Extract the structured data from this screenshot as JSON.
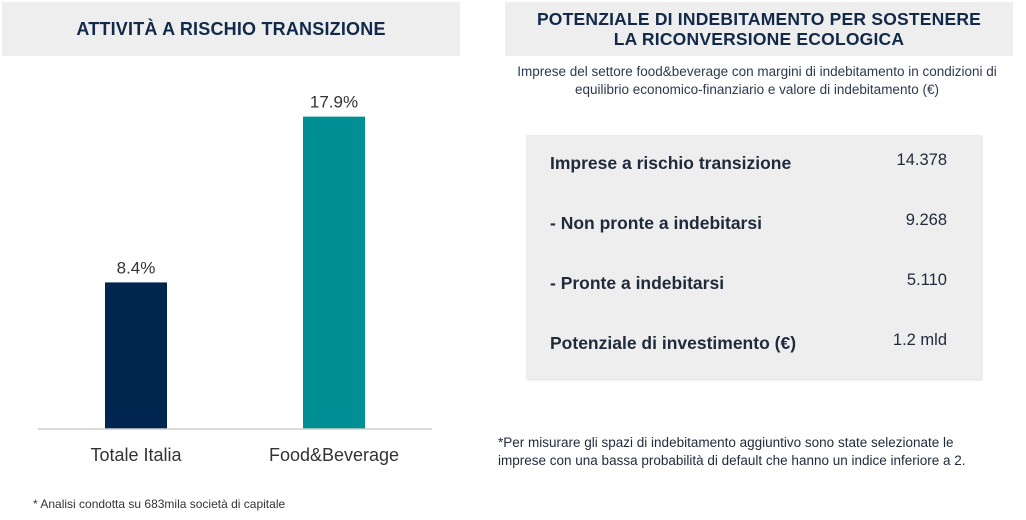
{
  "left_panel": {
    "title": "ATTIVITÀ A RISCHIO TRANSIZIONE",
    "footnote": "* Analisi condotta su 683mila società di capitale"
  },
  "chart_data": {
    "type": "bar",
    "categories": [
      "Totale Italia",
      "Food&Beverage"
    ],
    "values": [
      8.4,
      17.9
    ],
    "data_labels": [
      "8.4%",
      "17.9%"
    ],
    "colors": [
      "#00264f",
      "#008f94"
    ],
    "title": "ATTIVITÀ A RISCHIO TRANSIZIONE",
    "xlabel": "",
    "ylabel": "",
    "ylim": [
      0,
      20
    ],
    "grid": false,
    "legend": "none"
  },
  "right_panel": {
    "title_line1": "POTENZIALE DI INDEBITAMENTO PER SOSTENERE",
    "title_line2": "LA RICONVERSIONE ECOLOGICA",
    "subtitle_line1": "Imprese del settore food&beverage con margini di indebitamento in condizioni di",
    "subtitle_line2": "equilibrio economico-finanziario  e valore di indebitamento (€)",
    "rows": [
      {
        "label": "Imprese a rischio transizione",
        "value": "14.378"
      },
      {
        "label": "- Non pronte a indebitarsi",
        "value": "9.268"
      },
      {
        "label": "- Pronte a indebitarsi",
        "value": "5.110"
      },
      {
        "label": "Potenziale di investimento (€)",
        "value": "1.2 mld"
      }
    ],
    "note_line1": "*Per misurare gli spazi di indebitamento aggiuntivo sono state selezionate le",
    "note_line2": "imprese con una bassa probabilità di default che hanno un indice inferiore a 2."
  }
}
